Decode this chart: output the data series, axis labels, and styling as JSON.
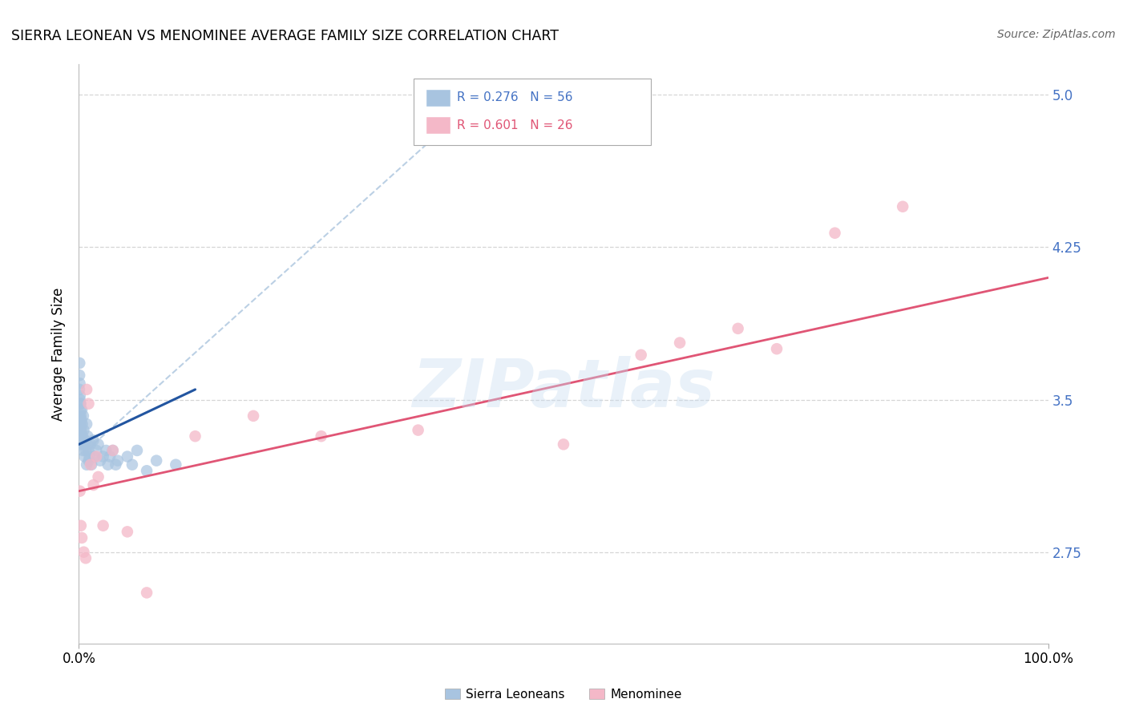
{
  "title": "SIERRA LEONEAN VS MENOMINEE AVERAGE FAMILY SIZE CORRELATION CHART",
  "source": "Source: ZipAtlas.com",
  "ylabel": "Average Family Size",
  "right_ytick_color": "#4472c4",
  "background_color": "#ffffff",
  "grid_color": "#cccccc",
  "watermark_text": "ZIPatlas",
  "watermark_color": "#c8ddf0",
  "sierra_color": "#a8c4e0",
  "menominee_color": "#f4b8c8",
  "sierra_line_color": "#2255a0",
  "menominee_line_color": "#e05575",
  "dashed_line_color": "#b0c8e0",
  "legend_sierra_color": "#a8c4e0",
  "legend_men_color": "#f4b8c8",
  "legend_text_sierra_color": "#4472c4",
  "legend_text_men_color": "#e05575",
  "sierra_R": "0.276",
  "sierra_N": "56",
  "menominee_R": "0.601",
  "menominee_N": "26",
  "sierra_x": [
    0.0008,
    0.001,
    0.0012,
    0.0015,
    0.0018,
    0.002,
    0.0022,
    0.0025,
    0.003,
    0.003,
    0.0035,
    0.004,
    0.004,
    0.0045,
    0.005,
    0.005,
    0.006,
    0.006,
    0.007,
    0.008,
    0.008,
    0.009,
    0.009,
    0.01,
    0.01,
    0.011,
    0.012,
    0.013,
    0.015,
    0.016,
    0.018,
    0.02,
    0.022,
    0.025,
    0.028,
    0.03,
    0.032,
    0.035,
    0.038,
    0.04,
    0.0005,
    0.0006,
    0.0007,
    0.0009,
    0.0011,
    0.0013,
    0.0016,
    0.0019,
    0.0021,
    0.0024,
    0.05,
    0.055,
    0.06,
    0.07,
    0.08,
    0.1
  ],
  "sierra_y": [
    3.42,
    3.5,
    3.38,
    3.35,
    3.48,
    3.32,
    3.28,
    3.4,
    3.45,
    3.3,
    3.38,
    3.25,
    3.32,
    3.42,
    3.28,
    3.35,
    3.22,
    3.3,
    3.25,
    3.38,
    3.18,
    3.28,
    3.32,
    3.2,
    3.25,
    3.22,
    3.28,
    3.18,
    3.3,
    3.22,
    3.25,
    3.28,
    3.2,
    3.22,
    3.25,
    3.18,
    3.22,
    3.25,
    3.18,
    3.2,
    3.55,
    3.62,
    3.68,
    3.58,
    3.52,
    3.48,
    3.45,
    3.42,
    3.38,
    3.35,
    3.22,
    3.18,
    3.25,
    3.15,
    3.2,
    3.18
  ],
  "menominee_x": [
    0.001,
    0.002,
    0.003,
    0.005,
    0.007,
    0.008,
    0.01,
    0.012,
    0.015,
    0.018,
    0.02,
    0.025,
    0.035,
    0.05,
    0.07,
    0.12,
    0.18,
    0.25,
    0.35,
    0.5,
    0.58,
    0.62,
    0.68,
    0.72,
    0.78,
    0.85
  ],
  "menominee_y": [
    3.05,
    2.88,
    2.82,
    2.75,
    2.72,
    3.55,
    3.48,
    3.18,
    3.08,
    3.22,
    3.12,
    2.88,
    3.25,
    2.85,
    2.55,
    3.32,
    3.42,
    3.32,
    3.35,
    3.28,
    3.72,
    3.78,
    3.85,
    3.75,
    4.32,
    4.45
  ],
  "sierra_line_x": [
    0.0,
    0.12
  ],
  "sierra_line_y": [
    3.28,
    3.55
  ],
  "menominee_line_x": [
    0.0,
    1.0
  ],
  "menominee_line_y": [
    3.05,
    4.1
  ],
  "dash_line_x": [
    0.015,
    0.42
  ],
  "dash_line_y": [
    3.28,
    5.02
  ],
  "xlim": [
    0.0,
    1.0
  ],
  "ylim": [
    2.3,
    5.15
  ],
  "yticks": [
    2.75,
    3.5,
    4.25,
    5.0
  ]
}
